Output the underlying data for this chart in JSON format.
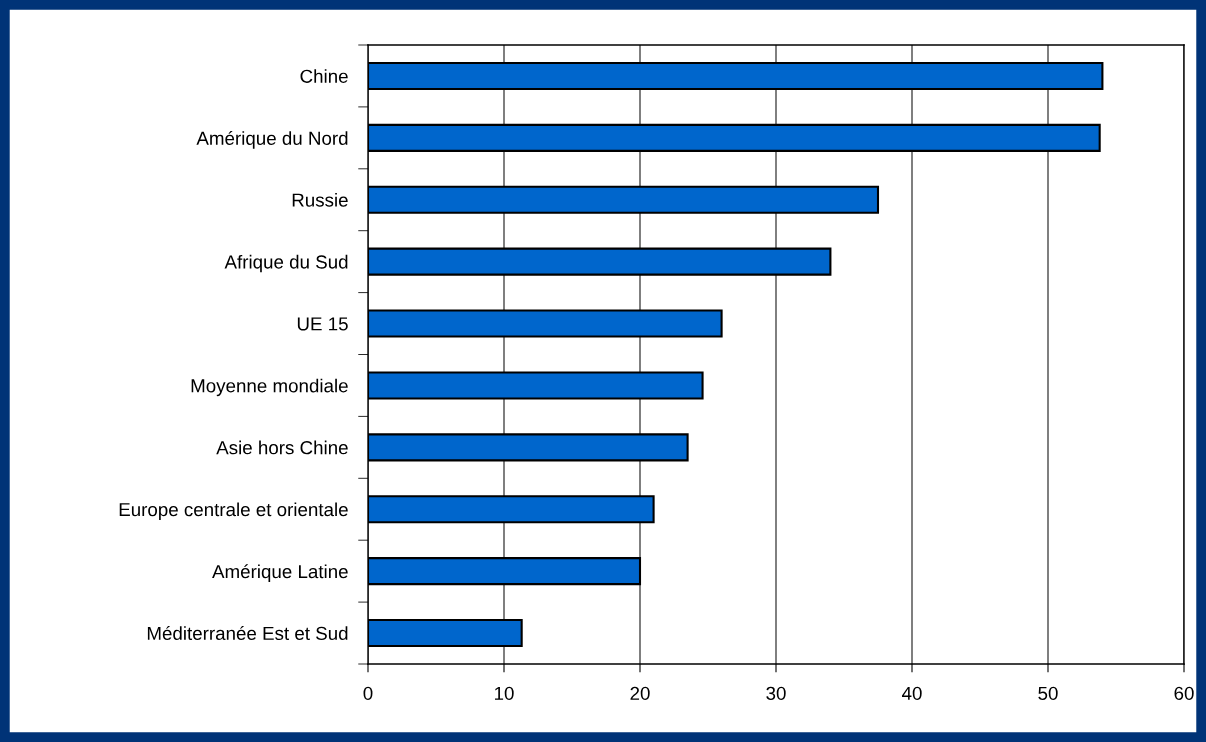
{
  "chart_data": {
    "type": "bar",
    "orientation": "horizontal",
    "categories": [
      "Chine",
      "Amérique du Nord",
      "Russie",
      "Afrique du Sud",
      "UE 15",
      "Moyenne mondiale",
      "Asie hors Chine",
      "Europe centrale et orientale",
      "Amérique Latine",
      "Méditerranée Est et Sud"
    ],
    "values": [
      54.0,
      53.8,
      37.5,
      34.0,
      26.0,
      24.6,
      23.5,
      21.0,
      20.0,
      11.3
    ],
    "color": "#0066cc",
    "xlim": [
      0,
      60
    ],
    "xticks": [
      0,
      10,
      20,
      30,
      40,
      50,
      60
    ],
    "grid": "x"
  }
}
